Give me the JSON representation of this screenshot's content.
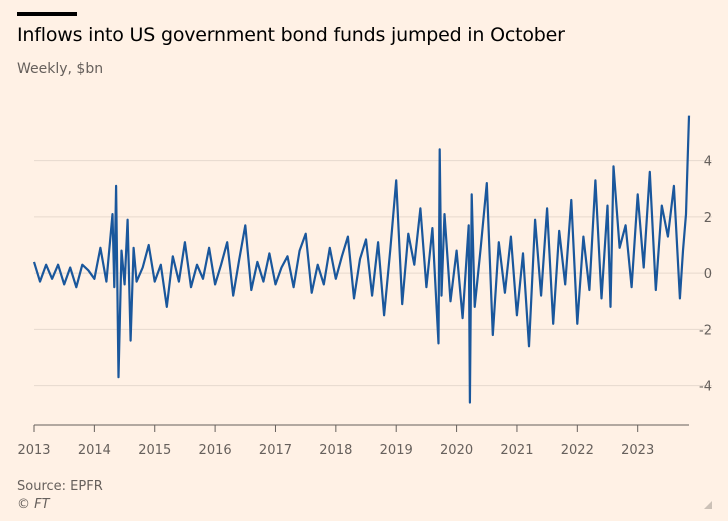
{
  "header": {
    "title": "Inflows into US government bond funds jumped in October",
    "subtitle": "Weekly, $bn"
  },
  "footer": {
    "source": "Source: EPFR",
    "credit": "© FT"
  },
  "colors": {
    "line": "#1a579c",
    "background": "#fff1e5",
    "grid": "#e6d9ce",
    "text": "#66605c"
  },
  "chart_data": {
    "type": "line",
    "title": "Inflows into US government bond funds jumped in October",
    "subtitle": "Weekly, $bn",
    "xlabel": "",
    "ylabel": "",
    "xlim": [
      2013.0,
      2023.85
    ],
    "ylim": [
      -5.4,
      5.8
    ],
    "x_ticks": [
      2013,
      2014,
      2015,
      2016,
      2017,
      2018,
      2019,
      2020,
      2021,
      2022,
      2023
    ],
    "y_ticks": [
      4,
      2,
      0,
      -2,
      -4
    ],
    "y_tick_side": "right",
    "grid": true,
    "series": [
      {
        "x": [
          2013.0,
          2013.1,
          2013.2,
          2013.3,
          2013.4,
          2013.5,
          2013.6,
          2013.7,
          2013.8,
          2013.9,
          2014.0,
          2014.1,
          2014.2,
          2014.3,
          2014.33,
          2014.36,
          2014.4,
          2014.45,
          2014.5,
          2014.55,
          2014.6,
          2014.65,
          2014.7,
          2014.8,
          2014.9,
          2015.0,
          2015.1,
          2015.2,
          2015.3,
          2015.4,
          2015.5,
          2015.6,
          2015.7,
          2015.8,
          2015.9,
          2016.0,
          2016.1,
          2016.2,
          2016.3,
          2016.4,
          2016.5,
          2016.6,
          2016.7,
          2016.8,
          2016.9,
          2017.0,
          2017.1,
          2017.2,
          2017.3,
          2017.4,
          2017.5,
          2017.6,
          2017.7,
          2017.8,
          2017.9,
          2018.0,
          2018.1,
          2018.2,
          2018.3,
          2018.4,
          2018.5,
          2018.6,
          2018.7,
          2018.8,
          2018.9,
          2019.0,
          2019.1,
          2019.2,
          2019.3,
          2019.4,
          2019.5,
          2019.6,
          2019.7,
          2019.72,
          2019.75,
          2019.8,
          2019.9,
          2020.0,
          2020.1,
          2020.2,
          2020.22,
          2020.25,
          2020.3,
          2020.4,
          2020.5,
          2020.6,
          2020.7,
          2020.8,
          2020.9,
          2021.0,
          2021.1,
          2021.2,
          2021.3,
          2021.4,
          2021.5,
          2021.6,
          2021.7,
          2021.8,
          2021.9,
          2022.0,
          2022.1,
          2022.2,
          2022.3,
          2022.4,
          2022.5,
          2022.55,
          2022.6,
          2022.7,
          2022.8,
          2022.9,
          2023.0,
          2023.1,
          2023.2,
          2023.3,
          2023.4,
          2023.5,
          2023.6,
          2023.7,
          2023.75,
          2023.8,
          2023.85
        ],
        "y": [
          0.4,
          -0.3,
          0.3,
          -0.2,
          0.3,
          -0.4,
          0.2,
          -0.5,
          0.3,
          0.1,
          -0.2,
          0.9,
          -0.3,
          2.1,
          -0.5,
          3.1,
          -3.7,
          0.8,
          -0.4,
          1.9,
          -2.4,
          0.9,
          -0.3,
          0.2,
          1.0,
          -0.3,
          0.3,
          -1.2,
          0.6,
          -0.3,
          1.1,
          -0.5,
          0.3,
          -0.2,
          0.9,
          -0.4,
          0.3,
          1.1,
          -0.8,
          0.5,
          1.7,
          -0.6,
          0.4,
          -0.3,
          0.7,
          -0.4,
          0.2,
          0.6,
          -0.5,
          0.8,
          1.4,
          -0.7,
          0.3,
          -0.4,
          0.9,
          -0.2,
          0.6,
          1.3,
          -0.9,
          0.5,
          1.2,
          -0.8,
          1.1,
          -1.5,
          0.8,
          3.3,
          -1.1,
          1.4,
          0.3,
          2.3,
          -0.5,
          1.6,
          -2.5,
          4.4,
          -0.8,
          2.1,
          -1.0,
          0.8,
          -1.6,
          1.7,
          -4.6,
          2.8,
          -1.2,
          0.9,
          3.2,
          -2.2,
          1.1,
          -0.7,
          1.3,
          -1.5,
          0.7,
          -2.6,
          1.9,
          -0.8,
          2.3,
          -1.8,
          1.5,
          -0.4,
          2.6,
          -1.8,
          1.3,
          -0.6,
          3.3,
          -0.9,
          2.4,
          -1.2,
          3.8,
          0.9,
          1.7,
          -0.5,
          2.8,
          0.2,
          3.6,
          -0.6,
          2.4,
          1.3,
          3.1,
          -0.9,
          0.8,
          2.1,
          5.6
        ]
      }
    ]
  }
}
